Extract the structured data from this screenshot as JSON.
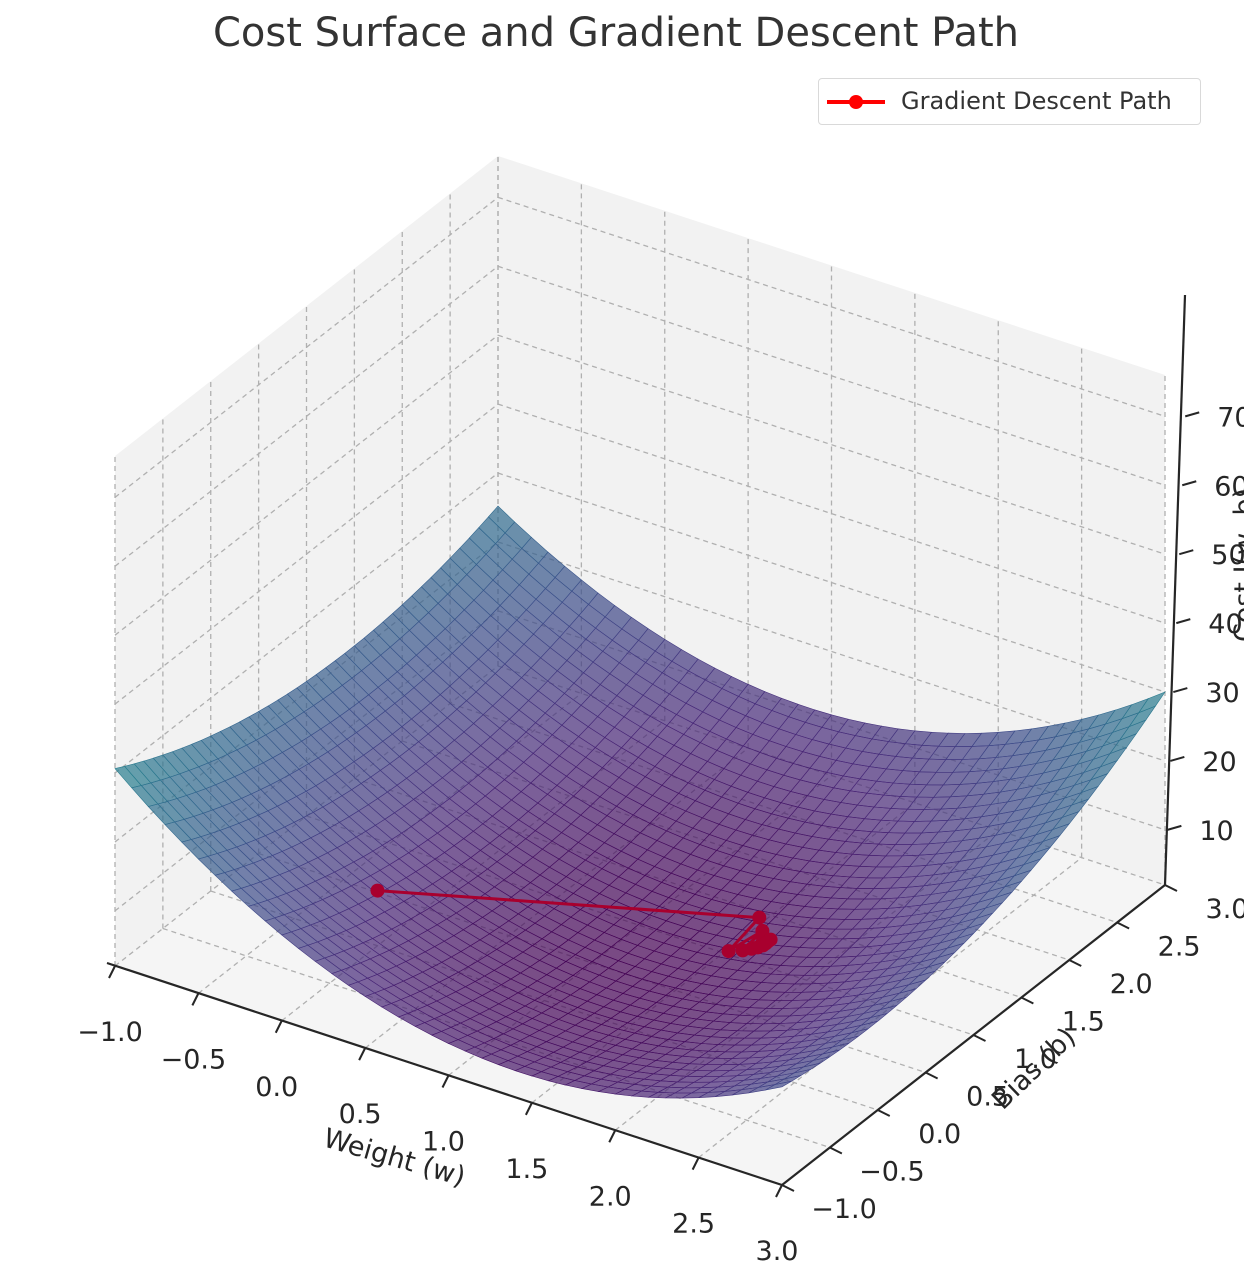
{
  "chart_data": {
    "type": "surface",
    "title": "Cost Surface and Gradient Descent Path",
    "xlabel": "Weight (w)",
    "ylabel": "Bias (b)",
    "zlabel": "Cost J(w, b)",
    "xlim": [
      -1,
      3
    ],
    "ylim": [
      -1,
      3
    ],
    "zlim": [
      2,
      76
    ],
    "x_ticks": [
      "−1.0",
      "−0.5",
      "0.0",
      "0.5",
      "1.0",
      "1.5",
      "2.0",
      "2.5",
      "3.0"
    ],
    "y_ticks": [
      "−1.0",
      "−0.5",
      "0.0",
      "0.5",
      "1.0",
      "1.5",
      "2.0",
      "2.5",
      "3.0"
    ],
    "z_ticks": [
      "10",
      "20",
      "30",
      "40",
      "50",
      "60",
      "70"
    ],
    "colormap": "viridis",
    "grid": true,
    "legend_position": "top-right",
    "path": {
      "name": "Gradient Descent Path",
      "color": "#ff0000",
      "draw_color": "#a8002e",
      "w": [
        0.0,
        1.48,
        1.52,
        1.55,
        1.57,
        1.59,
        1.6,
        1.61,
        1.62,
        1.63,
        1.64,
        1.65,
        1.66,
        1.67,
        1.68
      ],
      "b": [
        0.0,
        1.41,
        1.02,
        1.32,
        1.08,
        1.26,
        1.12,
        1.22,
        1.15,
        1.19,
        1.17,
        1.18,
        1.18,
        1.18,
        1.18
      ],
      "cost": [
        10.0,
        2.5,
        2.2,
        2.1,
        2.05,
        2.05,
        2.08,
        2.1,
        2.12,
        2.2,
        2.35,
        2.6,
        2.9,
        3.2,
        3.4
      ]
    }
  }
}
